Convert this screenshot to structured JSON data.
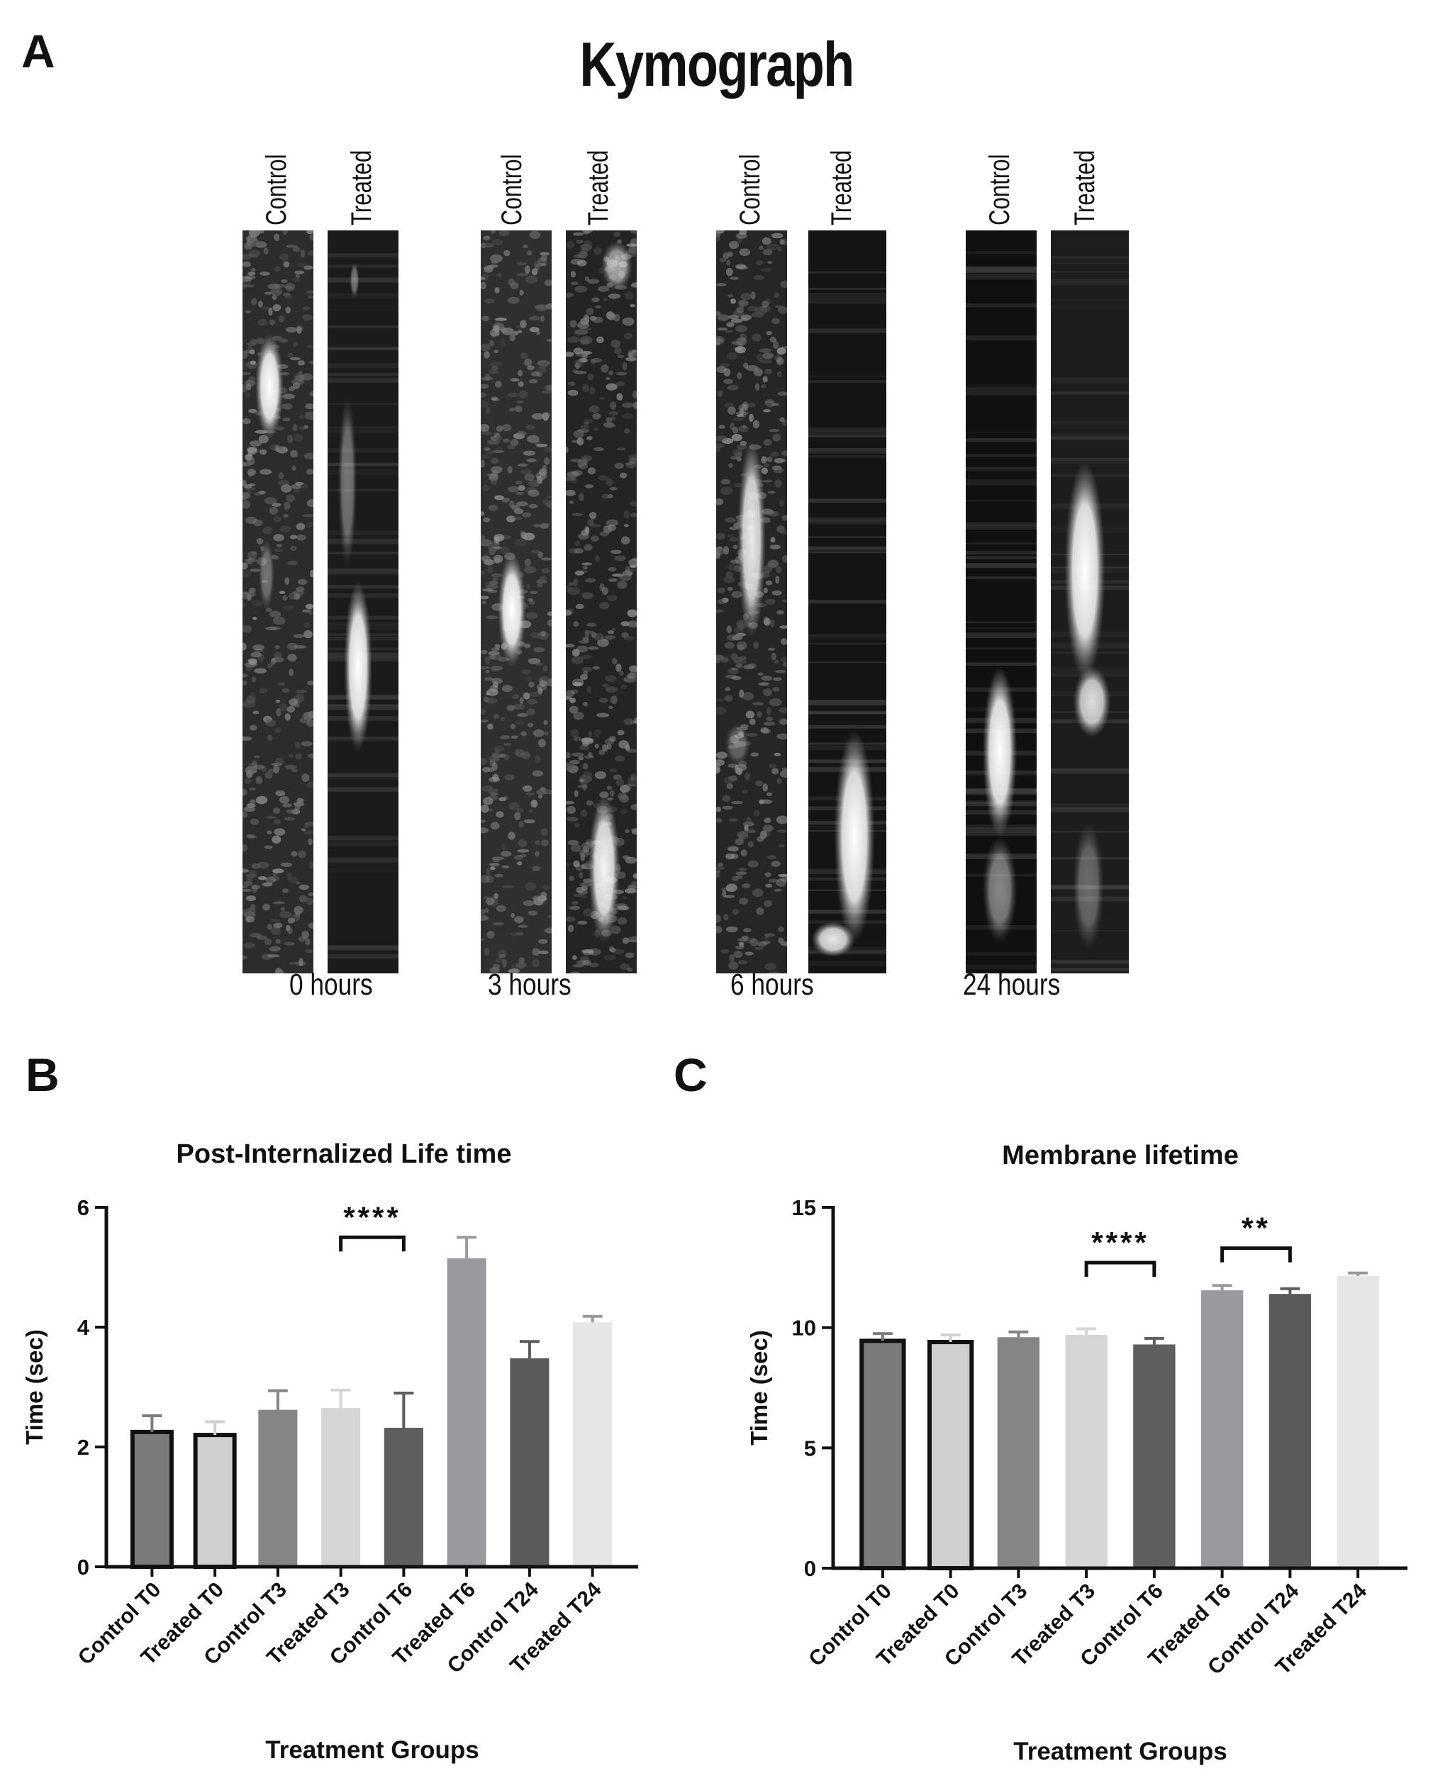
{
  "panels": {
    "a_label": "A",
    "b_label": "B",
    "c_label": "C"
  },
  "kymograph": {
    "title": "Kymograph",
    "groups": [
      {
        "time_label": "0 hours",
        "columns": [
          "Control",
          "Treated"
        ]
      },
      {
        "time_label": "3 hours",
        "columns": [
          "Control",
          "Treated"
        ]
      },
      {
        "time_label": "6 hours",
        "columns": [
          "Control",
          "Treated"
        ]
      },
      {
        "time_label": "24 hours",
        "columns": [
          "Control",
          "Treated"
        ]
      }
    ]
  },
  "colors": {
    "control_t0": "#7b7b7b",
    "treated_t0": "#cfcfcf",
    "control_t3": "#858585",
    "treated_t3": "#d6d6d6",
    "control_t6": "#5e5e5e",
    "treated_t6": "#9a9a9e",
    "control_t24": "#5a5a5a",
    "treated_t24": "#e6e6e6",
    "axis": "#111111"
  },
  "chart_data": [
    {
      "type": "bar",
      "title": "Post-Internalized Life time",
      "xlabel": "Treatment Groups",
      "ylabel": "Time (sec)",
      "ylim": [
        0,
        6
      ],
      "yticks": [
        0,
        2,
        4,
        6
      ],
      "categories": [
        "Control T0",
        "Treated T0",
        "Control T3",
        "Treated T3",
        "Control T6",
        "Treated T6",
        "Control T24",
        "Treated T24"
      ],
      "values": [
        2.25,
        2.2,
        2.62,
        2.65,
        2.32,
        5.15,
        3.48,
        4.08
      ],
      "errors": [
        0.27,
        0.22,
        0.32,
        0.3,
        0.58,
        0.35,
        0.28,
        0.1
      ],
      "bordered": [
        true,
        true,
        false,
        false,
        false,
        false,
        false,
        false
      ],
      "significance": [
        {
          "from": 3,
          "to": 4,
          "label": "****",
          "y": 5.5
        }
      ]
    },
    {
      "type": "bar",
      "title": "Membrane lifetime",
      "xlabel": "Treatment Groups",
      "ylabel": "Time (sec)",
      "ylim": [
        0,
        15
      ],
      "yticks": [
        0,
        5,
        10,
        15
      ],
      "categories": [
        "Control T0",
        "Treated T0",
        "Control T3",
        "Treated T3",
        "Control T6",
        "Treated T6",
        "Control T24",
        "Treated T24"
      ],
      "values": [
        9.45,
        9.4,
        9.6,
        9.7,
        9.3,
        11.55,
        11.4,
        12.15
      ],
      "errors": [
        0.3,
        0.3,
        0.22,
        0.25,
        0.25,
        0.2,
        0.22,
        0.12
      ],
      "bordered": [
        true,
        true,
        false,
        false,
        false,
        false,
        false,
        false
      ],
      "significance": [
        {
          "from": 3,
          "to": 4,
          "label": "****",
          "y": 12.7
        },
        {
          "from": 5,
          "to": 6,
          "label": "**",
          "y": 13.3
        }
      ]
    }
  ]
}
